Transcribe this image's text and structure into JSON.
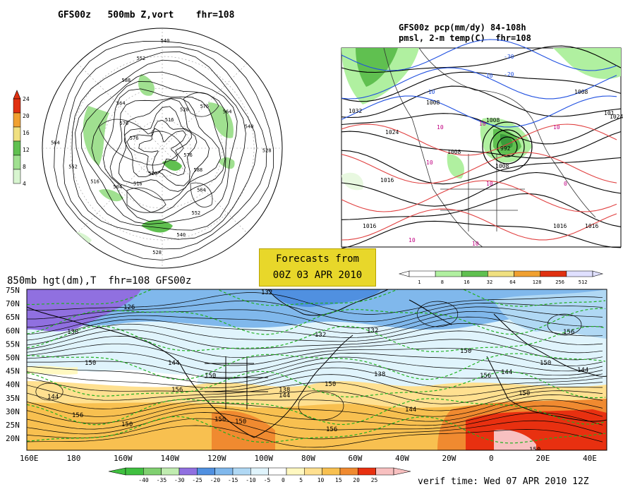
{
  "polar_panel": {
    "title": "GFS00z   500mb Z,vort    fhr=108",
    "colorbar_labels": [
      "24",
      "20",
      "16",
      "12",
      "8",
      "4"
    ],
    "colorbar_colors": [
      "#e03010",
      "#f0a030",
      "#f0e080",
      "#60c050",
      "#a0e090",
      "#d8f5d0"
    ],
    "contour_labels": [
      "576",
      "588",
      "564",
      "552",
      "540",
      "528",
      "516",
      "516",
      "504",
      "516",
      "552",
      "564",
      "576",
      "576",
      "564",
      "588",
      "552",
      "540",
      "516",
      "528",
      "576",
      "564",
      "540",
      "528"
    ]
  },
  "precip_panel": {
    "title_line1": "GFS00z pcp(mm/dy) 84-108h",
    "title_line2": "pmsl, 2-m temp(C)  fhr=108",
    "colorbar_labels": [
      "1",
      "8",
      "16",
      "32",
      "64",
      "128",
      "256",
      "512"
    ],
    "colorbar_colors": [
      "#ffffff",
      "#b0f0a0",
      "#60c050",
      "#f0e080",
      "#f0a030",
      "#e03010",
      "#e0e0ff"
    ],
    "isobar_labels": [
      "1032",
      "1024",
      "1016",
      "1016",
      "1008",
      "1008",
      "1008",
      "992",
      "1008",
      "1016",
      "1016",
      "1008",
      "1024",
      "101"
    ],
    "temp_labels": [
      "-30",
      "-20",
      "-10",
      "-10",
      "10",
      "10",
      "10",
      "10",
      "10",
      "10",
      "0",
      "10"
    ]
  },
  "forecast_box": {
    "line1": "Forecasts from",
    "line2": "00Z 03 APR 2010"
  },
  "main_map": {
    "title": "850mb hgt(dm),T  fhr=108 GFS00z",
    "lat_labels": [
      "75N",
      "70N",
      "65N",
      "60N",
      "55N",
      "50N",
      "45N",
      "40N",
      "35N",
      "30N",
      "25N",
      "20N"
    ],
    "lon_labels": [
      "160E",
      "180",
      "160W",
      "140W",
      "120W",
      "100W",
      "80W",
      "60W",
      "40W",
      "20W",
      "0",
      "20E",
      "40E"
    ],
    "height_labels": [
      "132",
      "126",
      "138",
      "132",
      "150",
      "144",
      "150",
      "156",
      "150",
      "150",
      "144",
      "156",
      "150",
      "138",
      "144",
      "150",
      "150",
      "156",
      "144",
      "150",
      "150",
      "156",
      "150",
      "144",
      "156",
      "144",
      "132",
      "138"
    ],
    "colorbar_labels": [
      "-40",
      "-35",
      "-30",
      "-25",
      "-20",
      "-15",
      "-10",
      "-5",
      "0",
      "5",
      "10",
      "15",
      "20",
      "25"
    ],
    "colorbar_colors": [
      "#40c040",
      "#80d070",
      "#c0ecb0",
      "#9070e0",
      "#5090e0",
      "#80b8ec",
      "#b0d8f4",
      "#e0f4fc",
      "#ffffff",
      "#fff8c0",
      "#ffe090",
      "#f8c050",
      "#f08a30",
      "#e83010",
      "#f8c0c0"
    ],
    "verif_time": "verif time: Wed 07 APR 2010 12Z"
  }
}
